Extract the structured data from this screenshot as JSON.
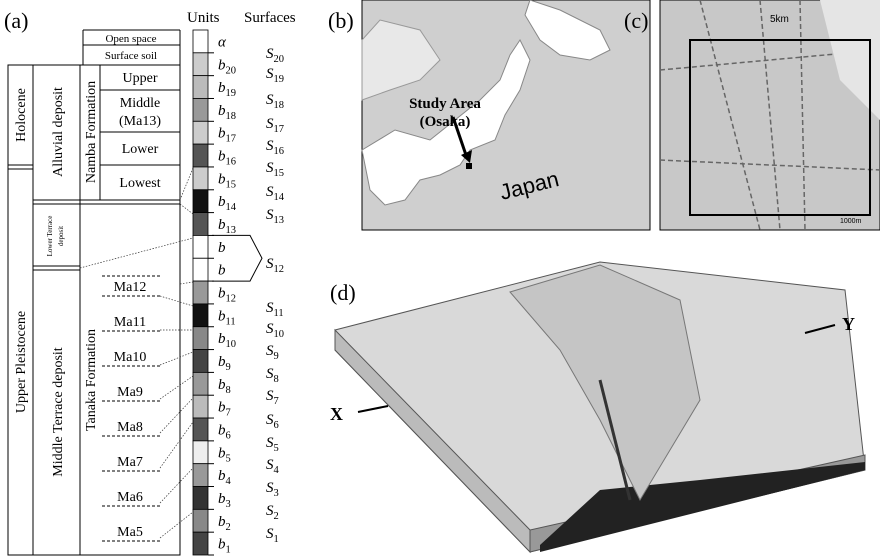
{
  "panel_labels": [
    "(a)",
    "(b)",
    "(c)",
    "(d)"
  ],
  "column_a": {
    "headers": {
      "units": "Units",
      "surfaces": "Surfaces"
    },
    "epochs": [
      "Holocene",
      "Upper Pleistocene"
    ],
    "deposits": [
      {
        "lines": [
          "Alluvial deposit"
        ]
      },
      {
        "lines": [
          "Lower Terrace",
          "deposit"
        ]
      },
      {
        "lines": [
          "Middle Terrace deposit"
        ]
      }
    ],
    "formations": [
      "Namba Formation",
      "Tanaka Formation"
    ],
    "top_layers": [
      "Open space",
      "Surface soil"
    ],
    "namba_members": [
      {
        "lines": [
          "Upper"
        ]
      },
      {
        "lines": [
          "Middle",
          "(Ma13)"
        ]
      },
      {
        "lines": [
          "Lower"
        ]
      },
      {
        "lines": [
          "Lowest"
        ]
      }
    ],
    "marine_clays": [
      "Ma12",
      "Ma11",
      "Ma10",
      "Ma9",
      "Ma8",
      "Ma7",
      "Ma6",
      "Ma5"
    ],
    "units": [
      {
        "symbol": "α"
      },
      {
        "symbol": "b",
        "sub": "20"
      },
      {
        "symbol": "b",
        "sub": "19"
      },
      {
        "symbol": "b",
        "sub": "18"
      },
      {
        "symbol": "b",
        "sub": "17"
      },
      {
        "symbol": "b",
        "sub": "16"
      },
      {
        "symbol": "b",
        "sub": "15"
      },
      {
        "symbol": "b",
        "sub": "14"
      },
      {
        "symbol": "b",
        "sub": "13"
      },
      {
        "symbol": "b"
      },
      {
        "symbol": "b"
      },
      {
        "symbol": "b",
        "sub": "12"
      },
      {
        "symbol": "b",
        "sub": "11"
      },
      {
        "symbol": "b",
        "sub": "10"
      },
      {
        "symbol": "b",
        "sub": "9"
      },
      {
        "symbol": "b",
        "sub": "8"
      },
      {
        "symbol": "b",
        "sub": "7"
      },
      {
        "symbol": "b",
        "sub": "6"
      },
      {
        "symbol": "b",
        "sub": "5"
      },
      {
        "symbol": "b",
        "sub": "4"
      },
      {
        "symbol": "b",
        "sub": "3"
      },
      {
        "symbol": "b",
        "sub": "2"
      },
      {
        "symbol": "b",
        "sub": "1"
      }
    ],
    "surfaces": [
      {
        "symbol": "S",
        "sub": "20"
      },
      {
        "symbol": "S",
        "sub": "19"
      },
      {
        "symbol": "S",
        "sub": "18"
      },
      {
        "symbol": "S",
        "sub": "17"
      },
      {
        "symbol": "S",
        "sub": "16"
      },
      {
        "symbol": "S",
        "sub": "15"
      },
      {
        "symbol": "S",
        "sub": "14"
      },
      {
        "symbol": "S",
        "sub": "13"
      },
      {
        "symbol": "S",
        "sub": "12"
      },
      {
        "symbol": "S",
        "sub": "11"
      },
      {
        "symbol": "S",
        "sub": "10"
      },
      {
        "symbol": "S",
        "sub": "9"
      },
      {
        "symbol": "S",
        "sub": "8"
      },
      {
        "symbol": "S",
        "sub": "7"
      },
      {
        "symbol": "S",
        "sub": "6"
      },
      {
        "symbol": "S",
        "sub": "5"
      },
      {
        "symbol": "S",
        "sub": "4"
      },
      {
        "symbol": "S",
        "sub": "3"
      },
      {
        "symbol": "S",
        "sub": "2"
      },
      {
        "symbol": "S",
        "sub": "1"
      }
    ]
  },
  "map_b": {
    "label": "Study Area",
    "sublabel": "(Osaka)",
    "country": "Japan"
  },
  "map_c": {
    "scale_top": "5km",
    "scale_bottom": "1000m"
  },
  "block_d": {
    "x_label": "X",
    "y_label": "Y"
  }
}
